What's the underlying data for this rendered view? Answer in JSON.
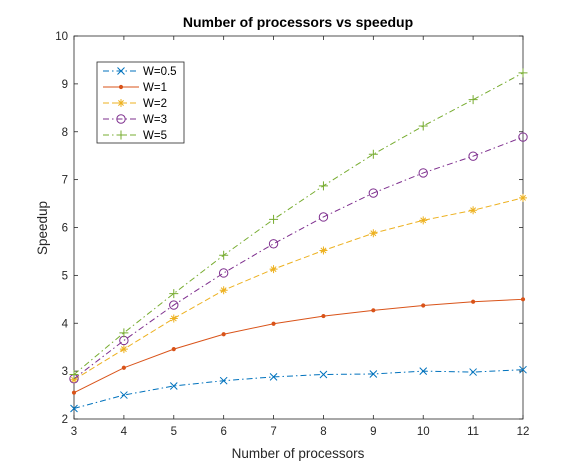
{
  "chart_data": {
    "type": "line",
    "title": "Number of processors vs speedup",
    "xlabel": "Number of processors",
    "ylabel": "Speedup",
    "x": [
      3,
      4,
      5,
      6,
      7,
      8,
      9,
      10,
      11,
      12
    ],
    "xlim": [
      3,
      12
    ],
    "ylim": [
      2,
      10
    ],
    "xticks": [
      "3",
      "4",
      "5",
      "6",
      "7",
      "8",
      "9",
      "10",
      "11",
      "12"
    ],
    "yticks": [
      "2",
      "3",
      "4",
      "5",
      "6",
      "7",
      "8",
      "9",
      "10"
    ],
    "grid": false,
    "legend_position": "top-left",
    "series": [
      {
        "name": "W=0.5",
        "color": "#0072BD",
        "line": "dashdot",
        "marker": "x",
        "values": [
          2.22,
          2.5,
          2.69,
          2.8,
          2.88,
          2.93,
          2.94,
          3.0,
          2.98,
          3.03
        ]
      },
      {
        "name": "W=1",
        "color": "#D95319",
        "line": "solid",
        "marker": "dot",
        "values": [
          2.55,
          3.07,
          3.46,
          3.77,
          3.99,
          4.15,
          4.27,
          4.37,
          4.45,
          4.5
        ]
      },
      {
        "name": "W=2",
        "color": "#EDB120",
        "line": "dashed",
        "marker": "asterisk",
        "values": [
          2.82,
          3.46,
          4.1,
          4.69,
          5.13,
          5.52,
          5.88,
          6.15,
          6.36,
          6.62
        ]
      },
      {
        "name": "W=3",
        "color": "#7E2F8E",
        "line": "dashdot",
        "marker": "circle",
        "values": [
          2.84,
          3.64,
          4.38,
          5.05,
          5.66,
          6.22,
          6.72,
          7.14,
          7.49,
          7.89
        ]
      },
      {
        "name": "W=5",
        "color": "#77AC30",
        "line": "dashdot",
        "marker": "plus",
        "values": [
          2.93,
          3.8,
          4.62,
          5.42,
          6.17,
          6.87,
          7.53,
          8.12,
          8.67,
          9.23
        ]
      }
    ]
  }
}
